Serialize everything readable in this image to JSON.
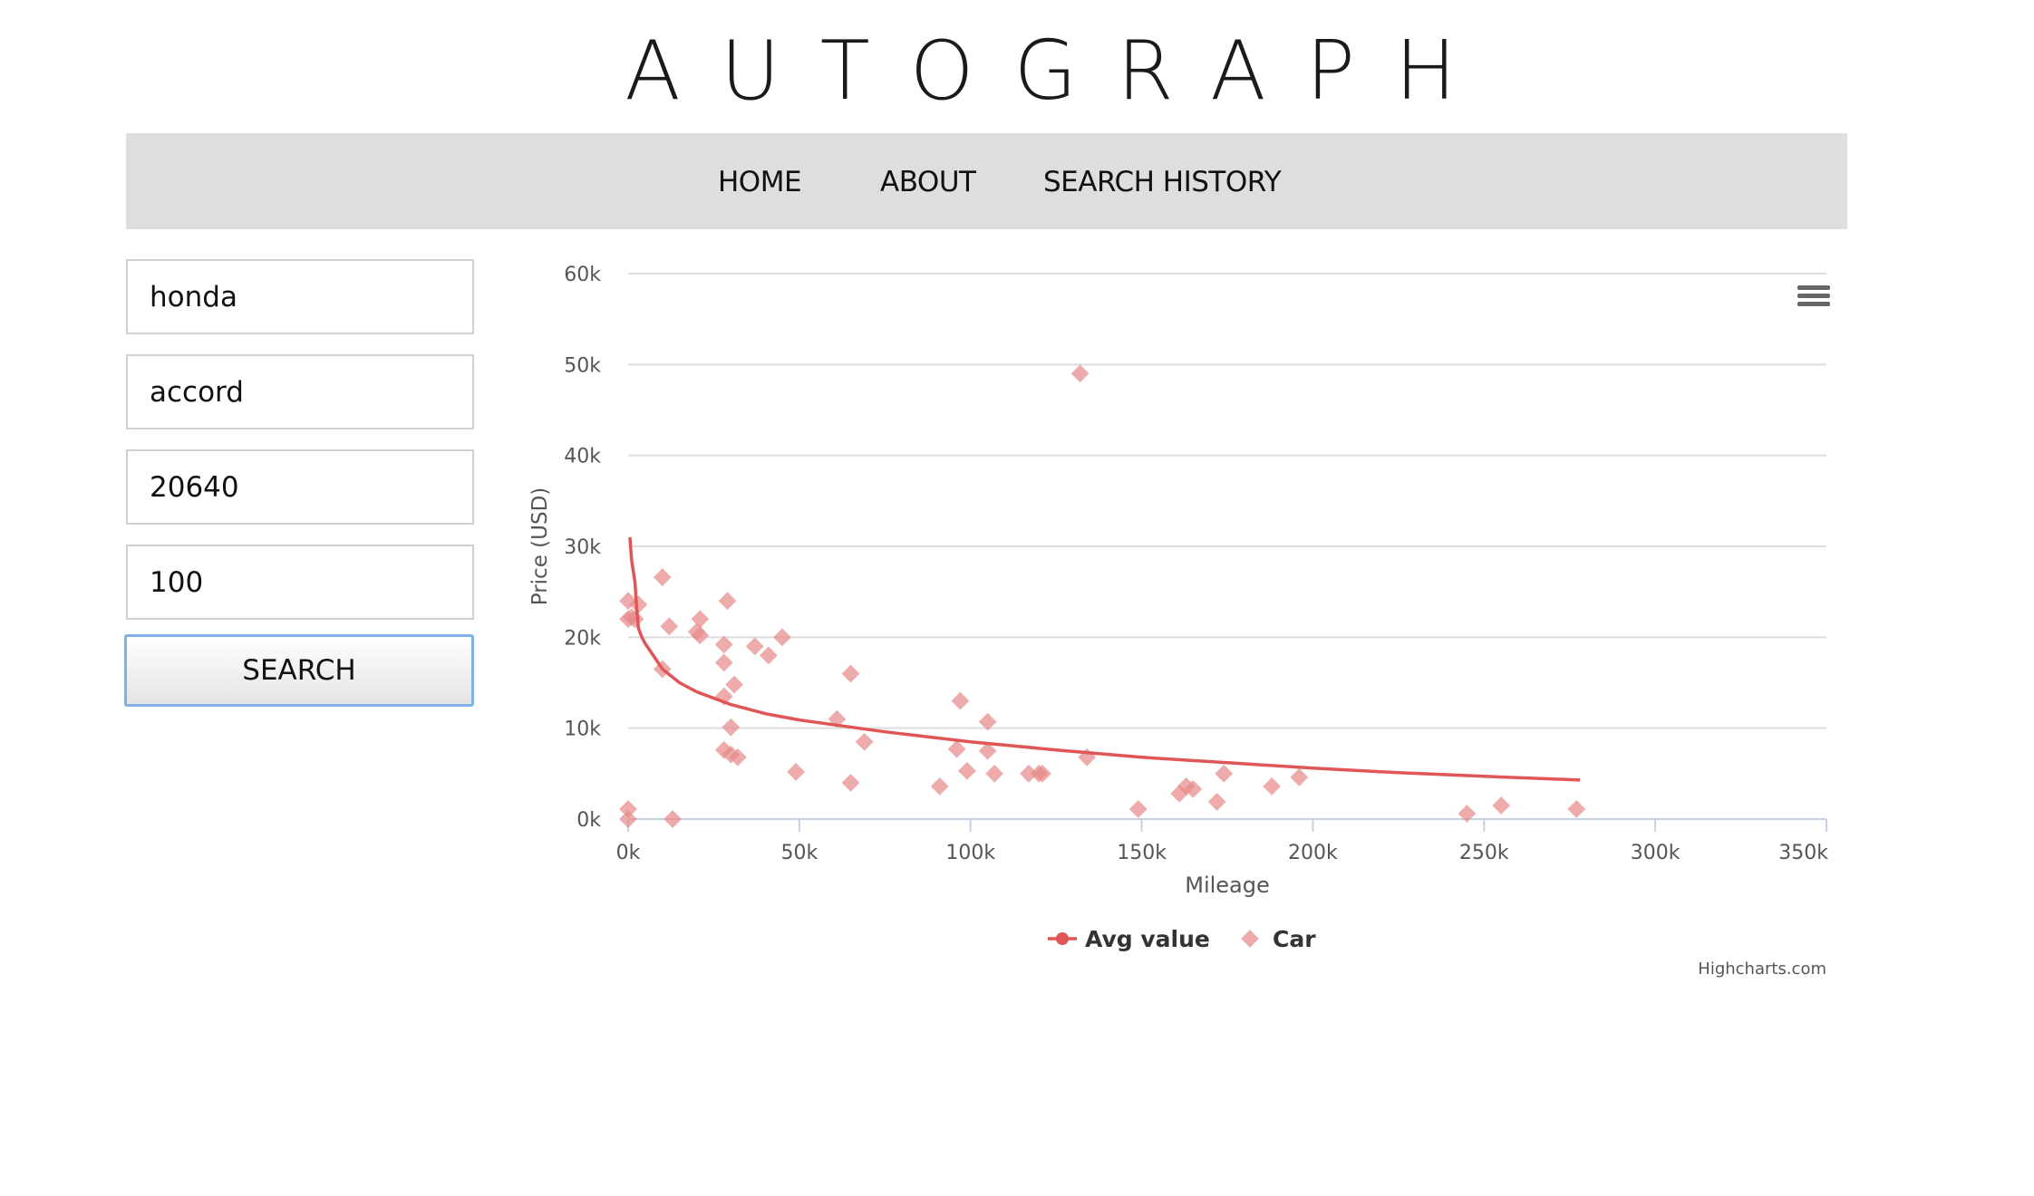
{
  "logo": "AUTOGRAPH",
  "nav": {
    "home": "HOME",
    "about": "ABOUT",
    "history": "SEARCH HISTORY"
  },
  "form": {
    "make": "honda",
    "model": "accord",
    "zip": "20640",
    "radius": "100",
    "search_label": "SEARCH"
  },
  "colors": {
    "accent": "#e05555",
    "nav_bg": "#dedede",
    "button_focus": "#7fb0e6"
  },
  "chart_data": {
    "type": "scatter",
    "xlabel": "Mileage",
    "ylabel": "Price (USD)",
    "xlim": [
      0,
      350000
    ],
    "ylim": [
      0,
      60000
    ],
    "x_ticks": [
      "0k",
      "50k",
      "100k",
      "150k",
      "200k",
      "250k",
      "300k",
      "350k"
    ],
    "y_ticks": [
      "0k",
      "10k",
      "20k",
      "30k",
      "40k",
      "50k",
      "60k"
    ],
    "grid": "horizontal",
    "legend_position": "bottom-center",
    "credit": "Highcharts.com",
    "menu_icon": "hamburger-menu-icon",
    "series": [
      {
        "name": "Car",
        "type": "scatter",
        "marker": "diamond",
        "color": "#e88a8a",
        "points": [
          [
            0,
            24000
          ],
          [
            0,
            22000
          ],
          [
            1000,
            22200
          ],
          [
            2000,
            22000
          ],
          [
            3000,
            23600
          ],
          [
            0,
            1100
          ],
          [
            0,
            0
          ],
          [
            13000,
            0
          ],
          [
            10000,
            26600
          ],
          [
            12000,
            21200
          ],
          [
            10000,
            16500
          ],
          [
            20000,
            20600
          ],
          [
            21000,
            22000
          ],
          [
            21000,
            20200
          ],
          [
            28000,
            19200
          ],
          [
            29000,
            24000
          ],
          [
            28000,
            17200
          ],
          [
            31000,
            14800
          ],
          [
            28000,
            13500
          ],
          [
            30000,
            10100
          ],
          [
            28000,
            7600
          ],
          [
            30000,
            7100
          ],
          [
            32000,
            6800
          ],
          [
            37000,
            19000
          ],
          [
            41000,
            18000
          ],
          [
            45000,
            20000
          ],
          [
            49000,
            5200
          ],
          [
            61000,
            11000
          ],
          [
            65000,
            16000
          ],
          [
            69000,
            8500
          ],
          [
            65000,
            4000
          ],
          [
            91000,
            3600
          ],
          [
            97000,
            13000
          ],
          [
            96000,
            7700
          ],
          [
            99000,
            5300
          ],
          [
            105000,
            10700
          ],
          [
            105000,
            7500
          ],
          [
            107000,
            5000
          ],
          [
            117000,
            5000
          ],
          [
            120000,
            5000
          ],
          [
            121000,
            5000
          ],
          [
            134000,
            6800
          ],
          [
            132000,
            49000
          ],
          [
            149000,
            1100
          ],
          [
            161000,
            2800
          ],
          [
            163000,
            3600
          ],
          [
            165000,
            3300
          ],
          [
            172000,
            1900
          ],
          [
            174000,
            5000
          ],
          [
            188000,
            3600
          ],
          [
            196000,
            4600
          ],
          [
            245000,
            600
          ],
          [
            255000,
            1500
          ],
          [
            277000,
            1100
          ]
        ]
      },
      {
        "name": "Avg value",
        "type": "line",
        "color": "#e05555",
        "points": [
          [
            500,
            31000
          ],
          [
            1000,
            28500
          ],
          [
            2000,
            26000
          ],
          [
            2500,
            23200
          ],
          [
            3000,
            21000
          ],
          [
            4000,
            20000
          ],
          [
            5000,
            19300
          ],
          [
            10000,
            16500
          ],
          [
            15000,
            15000
          ],
          [
            20000,
            14000
          ],
          [
            30000,
            12600
          ],
          [
            40000,
            11600
          ],
          [
            50000,
            10900
          ],
          [
            75000,
            9600
          ],
          [
            100000,
            8500
          ],
          [
            125000,
            7600
          ],
          [
            150000,
            6800
          ],
          [
            175000,
            6200
          ],
          [
            200000,
            5600
          ],
          [
            225000,
            5100
          ],
          [
            250000,
            4700
          ],
          [
            278000,
            4300
          ]
        ]
      }
    ]
  }
}
